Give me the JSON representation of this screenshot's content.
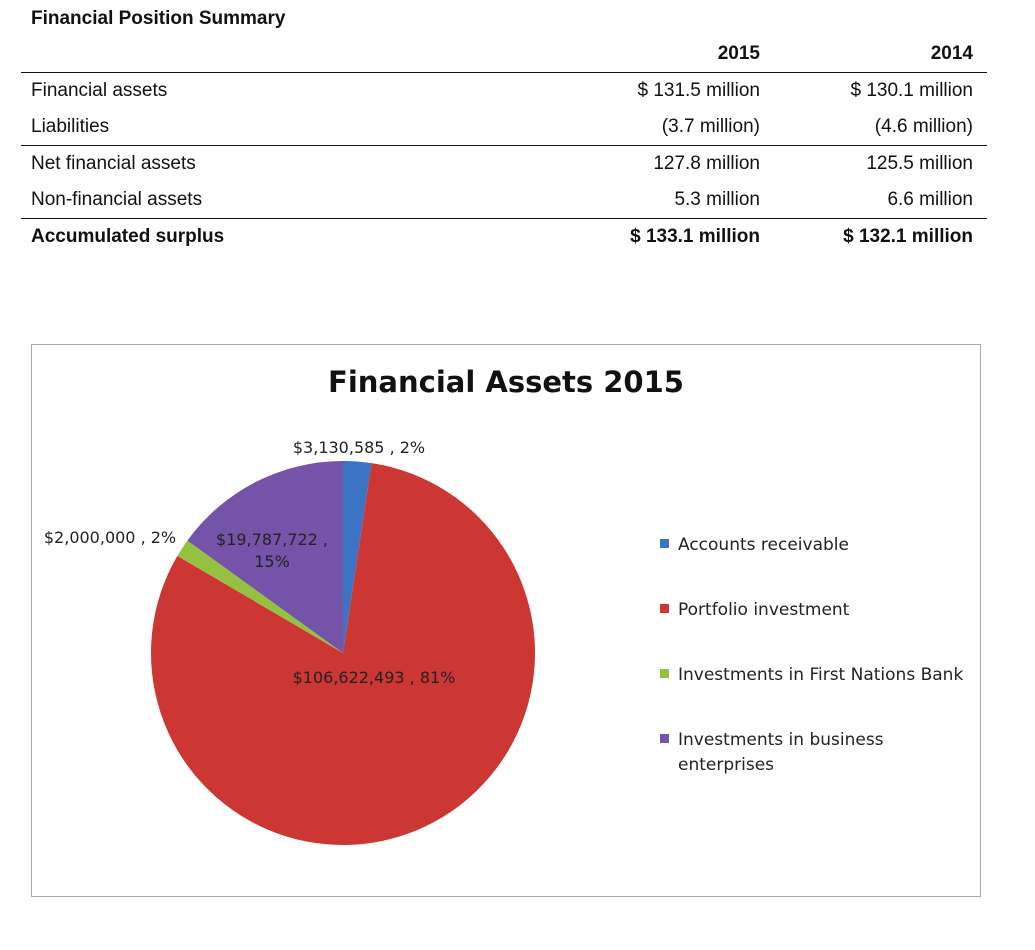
{
  "summary": {
    "title": "Financial Position Summary",
    "columns": [
      "2015",
      "2014"
    ],
    "rows": [
      {
        "label": "Financial assets",
        "v2015": "$ 131.5 million",
        "v2014": "$ 130.1 million"
      },
      {
        "label": "Liabilities",
        "v2015": "(3.7 million)",
        "v2014": "(4.6 million)"
      },
      {
        "label": "Net financial assets",
        "v2015": "127.8 million",
        "v2014": "125.5 million"
      },
      {
        "label": "Non-financial assets",
        "v2015": "5.3 million",
        "v2014": "6.6 million"
      },
      {
        "label": "Accumulated surplus",
        "v2015": "$ 133.1 million",
        "v2014": "$ 132.1 million"
      }
    ]
  },
  "chart_data": {
    "type": "pie",
    "title": "Financial Assets 2015",
    "categories": [
      "Accounts receivable",
      "Portfolio investment",
      "Investments in First Nations Bank",
      "Investments in business enterprises"
    ],
    "values": [
      3130585,
      106622493,
      2000000,
      19787722
    ],
    "data_labels": [
      "$3,130,585 , 2%",
      "$106,622,493 , 81%",
      "$2,000,000 , 2%",
      "$19,787,722 , 15%"
    ],
    "colors": [
      "#3b74c4",
      "#cc3633",
      "#95c142",
      "#7453a8"
    ],
    "legend_position": "right",
    "start": "12 o'clock, clockwise"
  }
}
